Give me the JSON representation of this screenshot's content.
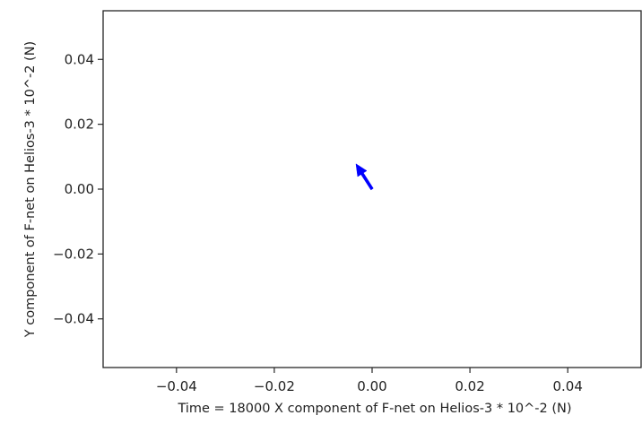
{
  "chart_data": {
    "type": "quiver",
    "title": "",
    "xlabel": "Time = 18000   X component of F-net on Helios-3 * 10^-2 (N)",
    "ylabel": "Y component of F-net on Helios-3 * 10^-2 (N)",
    "xlim": [
      -0.055,
      0.055
    ],
    "ylim": [
      -0.055,
      0.055
    ],
    "x_ticks": [
      -0.04,
      -0.02,
      0.0,
      0.02,
      0.04
    ],
    "y_ticks": [
      -0.04,
      -0.02,
      0.0,
      0.02,
      0.04
    ],
    "x_tick_labels": [
      "−0.04",
      "−0.02",
      "0.00",
      "0.02",
      "0.04"
    ],
    "y_tick_labels": [
      "−0.04",
      "−0.02",
      "0.00",
      "0.02",
      "0.04"
    ],
    "grid": false,
    "arrow": {
      "tail": [
        0.0,
        0.0
      ],
      "tip": [
        -0.0033,
        0.0078
      ],
      "color": "#0000ff"
    }
  }
}
